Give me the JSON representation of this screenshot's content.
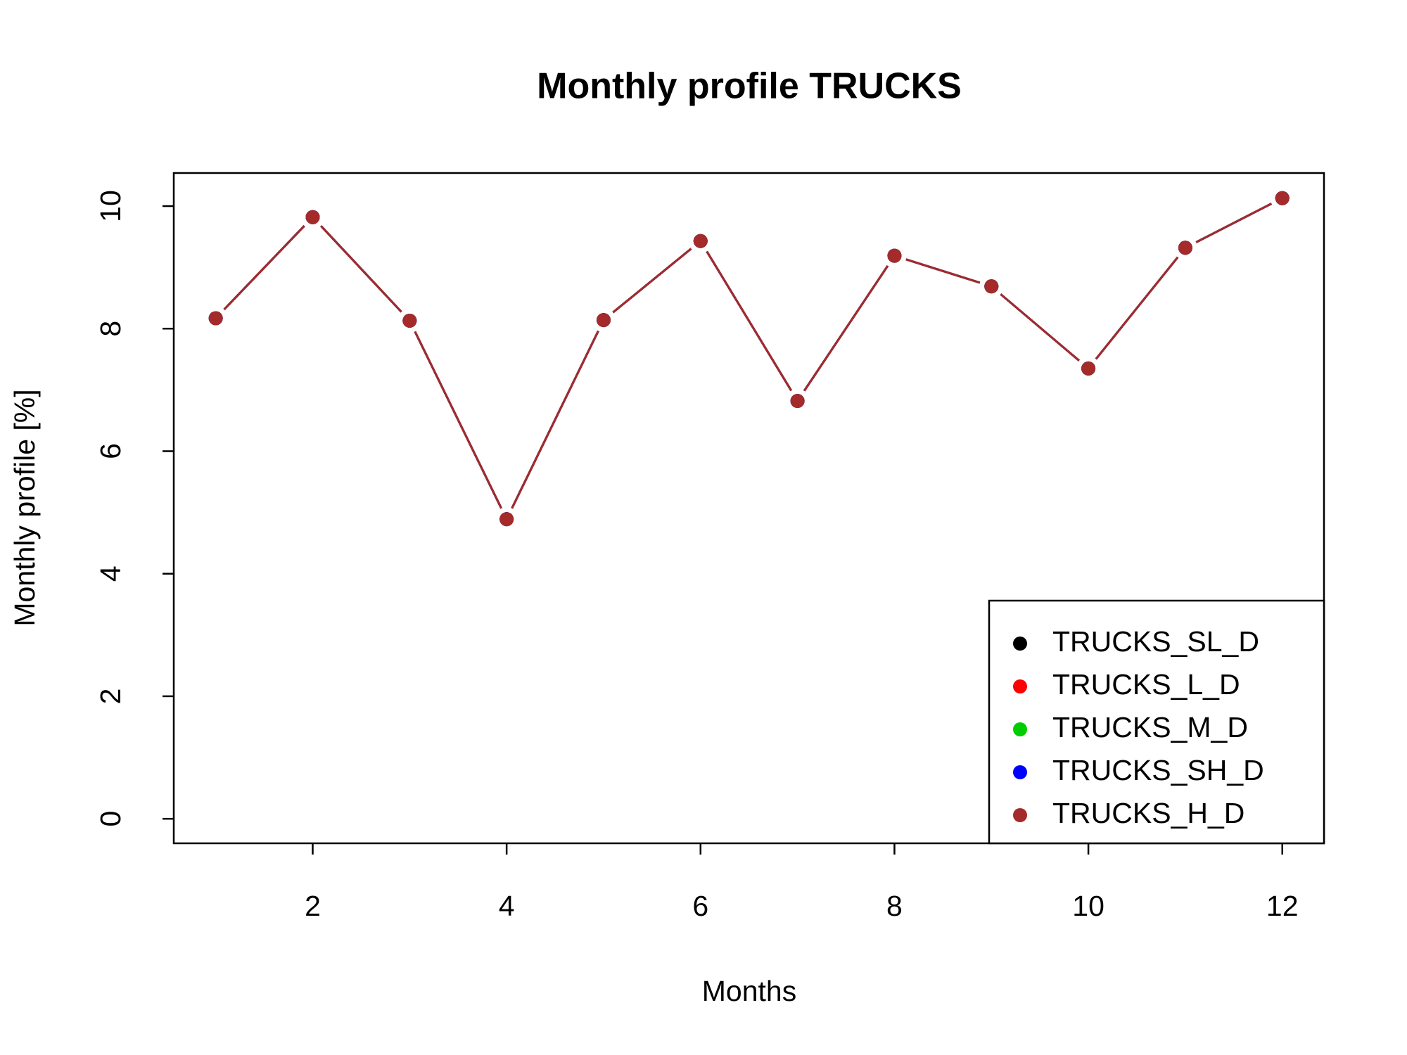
{
  "chart_data": {
    "type": "line",
    "title": "Monthly profile TRUCKS",
    "xlabel": "Months",
    "ylabel": "Monthly profile [%]",
    "x": [
      1,
      2,
      3,
      4,
      5,
      6,
      7,
      8,
      9,
      10,
      11,
      12
    ],
    "series": [
      {
        "name": "TRUCKS_SL_D",
        "color": "#000000",
        "values": [
          8.17,
          9.82,
          8.13,
          4.89,
          8.14,
          9.43,
          6.82,
          9.19,
          8.69,
          7.35,
          9.32,
          10.13
        ]
      },
      {
        "name": "TRUCKS_L_D",
        "color": "#ff0000",
        "values": [
          8.17,
          9.82,
          8.13,
          4.89,
          8.14,
          9.43,
          6.82,
          9.19,
          8.69,
          7.35,
          9.32,
          10.13
        ]
      },
      {
        "name": "TRUCKS_M_D",
        "color": "#00cd00",
        "values": [
          8.17,
          9.82,
          8.13,
          4.89,
          8.14,
          9.43,
          6.82,
          9.19,
          8.69,
          7.35,
          9.32,
          10.13
        ]
      },
      {
        "name": "TRUCKS_SH_D",
        "color": "#0000ff",
        "values": [
          8.17,
          9.82,
          8.13,
          4.89,
          8.14,
          9.43,
          6.82,
          9.19,
          8.69,
          7.35,
          9.32,
          10.13
        ]
      },
      {
        "name": "TRUCKS_H_D",
        "color": "#a52a2a",
        "values": [
          8.17,
          9.82,
          8.13,
          4.89,
          8.14,
          9.43,
          6.82,
          9.19,
          8.69,
          7.35,
          9.32,
          10.13
        ]
      }
    ],
    "xlim": [
      0.567,
      12.43
    ],
    "ylim": [
      -0.4,
      10.54
    ],
    "xticks": [
      2,
      4,
      6,
      8,
      10,
      12
    ],
    "yticks": [
      0,
      2,
      4,
      6,
      8,
      10
    ],
    "legend": "bottomright"
  }
}
